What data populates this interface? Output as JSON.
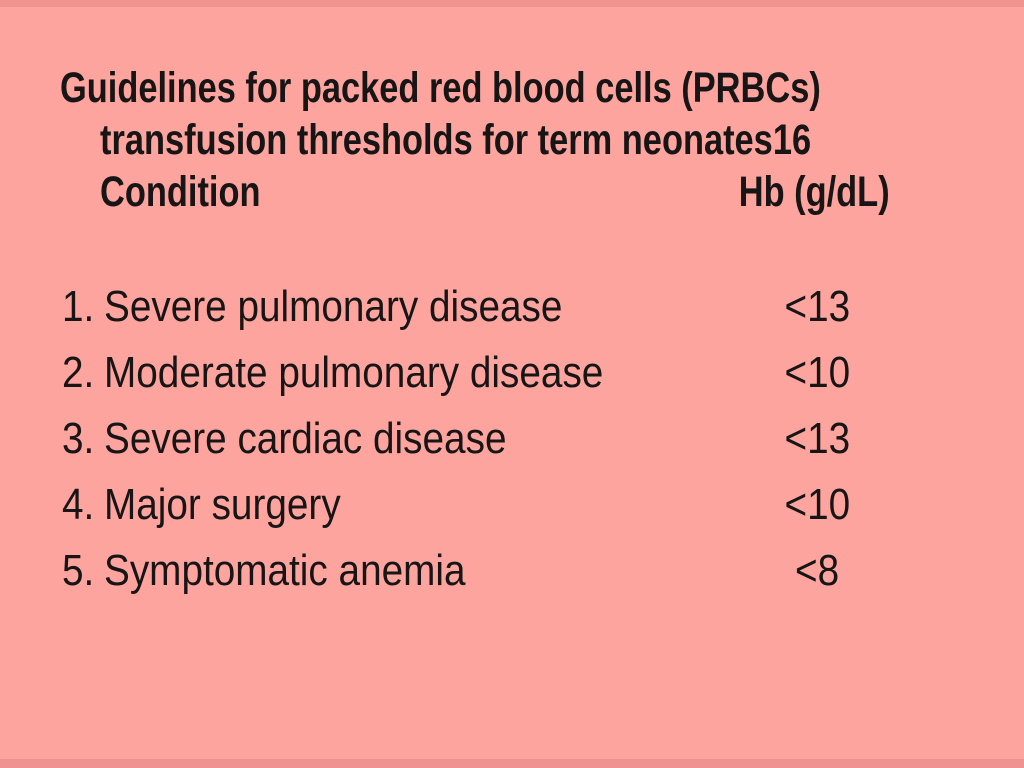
{
  "slide": {
    "colors": {
      "background": "#fda49f",
      "edge": "#ee938f",
      "text": "#171515"
    },
    "title": {
      "line1": "Guidelines for packed red blood cells (PRBCs)",
      "line2": "transfusion thresholds for term neonates16",
      "column_left": "Condition",
      "column_right": "Hb (g/dL)"
    },
    "items": [
      {
        "number": "1.",
        "condition": "Severe pulmonary disease",
        "threshold": "<13"
      },
      {
        "number": "2.",
        "condition": "Moderate pulmonary disease",
        "threshold": "<10"
      },
      {
        "number": "3.",
        "condition": "Severe cardiac disease",
        "threshold": "<13"
      },
      {
        "number": "4.",
        "condition": "Major surgery",
        "threshold": "<10"
      },
      {
        "number": "5.",
        "condition": "Symptomatic anemia",
        "threshold": "<8"
      }
    ]
  }
}
